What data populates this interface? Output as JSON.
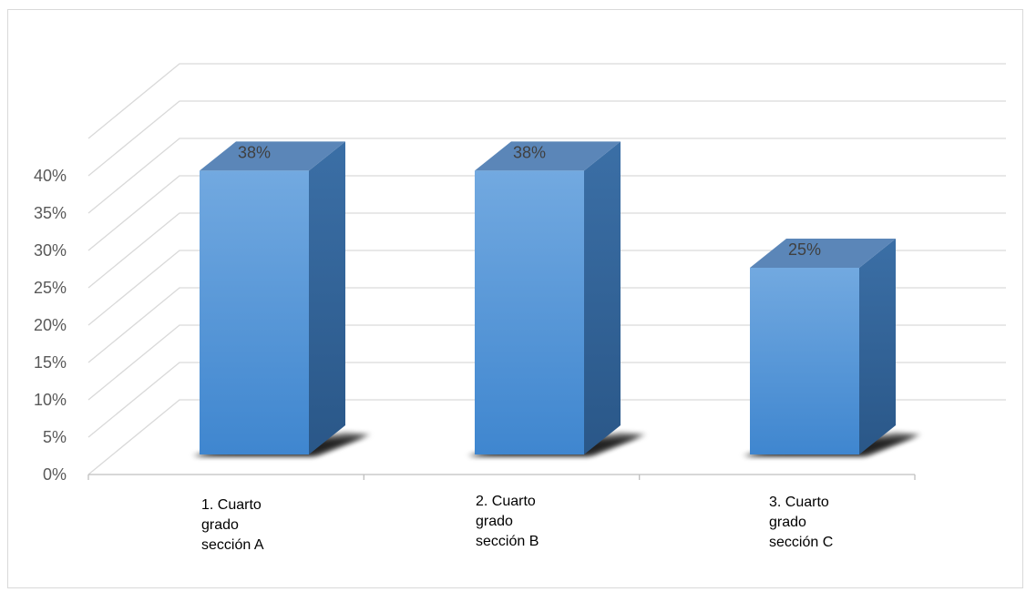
{
  "chart_data": {
    "type": "bar",
    "categories": [
      [
        "1. Cuarto",
        "grado",
        "sección A"
      ],
      [
        "2. Cuarto",
        "grado",
        "sección B"
      ],
      [
        "3. Cuarto",
        "grado",
        "sección C"
      ]
    ],
    "values": [
      38,
      38,
      25
    ],
    "data_labels": [
      "38%",
      "38%",
      "25%"
    ],
    "y_ticks": [
      "0%",
      "5%",
      "10%",
      "15%",
      "20%",
      "25%",
      "30%",
      "35%",
      "40%"
    ],
    "ylim": [
      0,
      40
    ],
    "y_unit": "%",
    "title": "",
    "xlabel": "",
    "ylabel": "",
    "grid": true,
    "legend": "none",
    "style": "3d-column",
    "colors": {
      "bar_front_top": "#72a9e0",
      "bar_front_bottom": "#3f86cf",
      "bar_side": "#2f5f94",
      "bar_top": "#5b86b8",
      "grid": "#d9d9d9",
      "axis": "#bfbfbf"
    }
  }
}
